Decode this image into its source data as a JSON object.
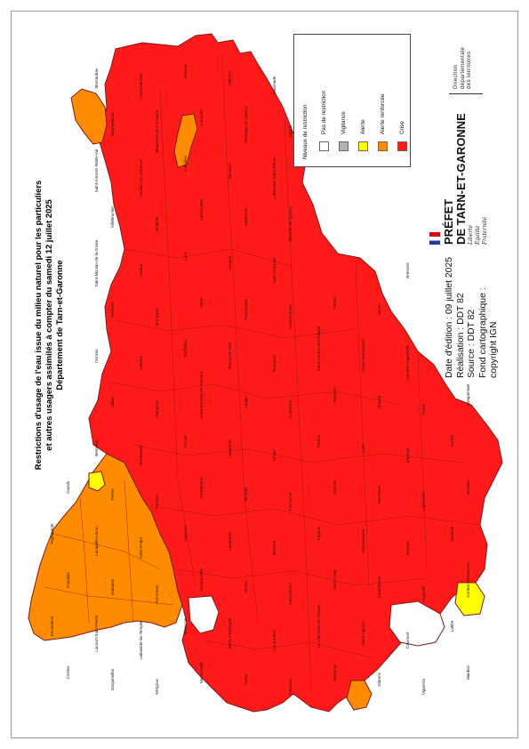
{
  "title": {
    "line1": "Restrictions d'usage de l'eau issue du milieu naturel pour les particuliers",
    "line2": "et autres usagers assimilés à compter du samedi 12 juillet 2025",
    "line3": "Département de Tarn-et-Garonne"
  },
  "legend": {
    "heading": "Niveaux de restriction",
    "items": [
      {
        "label": "Pas de restriction",
        "color": "#ffffff"
      },
      {
        "label": "Vigilance",
        "color": "#b3b3b3"
      },
      {
        "label": "Alerte",
        "color": "#ffff00"
      },
      {
        "label": "Alerte renforcée",
        "color": "#ff8c00"
      },
      {
        "label": "Crise",
        "color": "#ff1a1a"
      }
    ]
  },
  "meta": {
    "edition": "Date d'édition : 09 juillet 2025",
    "realisation": "Réalisation : DDT 82",
    "source": "Source : DDT 82",
    "fond": "Fond cartographique :",
    "copyright": "copyright IGN"
  },
  "prefet": {
    "line1": "PRÉFET",
    "line2": "DE TARN-ET-GARONNE",
    "motto1": "Liberté",
    "motto2": "Égalité",
    "motto3": "Fraternité"
  },
  "service": {
    "line1": "Direction",
    "line2": "départementale",
    "line3": "des territoires"
  },
  "colors": {
    "crise": "#ff1a1a",
    "alerte_renforcee": "#ff8c00",
    "alerte": "#ffff00",
    "pas_de_restriction": "#ffffff",
    "border": "#7a1a1a"
  },
  "map_labels": [
    "Montauban",
    "Castelsarrasin",
    "Moissac",
    "Valence",
    "Caussade",
    "Nègrepelisse",
    "Beaumont-de-Lomagne",
    "Lauzerte",
    "Montaigu-de-Quercy",
    "Caylus",
    "Saint-Antonin-Noble-Val",
    "Verdun-sur-Garonne",
    "Grisolles",
    "Montech",
    "Labastide-Saint-Pierre",
    "Villebrumier",
    "Molières",
    "Lafrançaise",
    "Septfonds",
    "Monclar-de-Quercy",
    "Saint-Nicolas-de-la-Grave",
    "Auvillar",
    "Lavit",
    "Larrazet",
    "Saint-Porquier",
    "Bressols",
    "Réalville",
    "Bruniquel",
    "Varen",
    "Puylaroque",
    "Castelmayran",
    "Finhan",
    "Dunes",
    "Donzac",
    "Valeilles",
    "Touffailles",
    "Bourg-de-Visa",
    "Roquecor",
    "Saint-Amans-de-Pellagal",
    "Cazes-Mondenard",
    "Lamothe-Capdeville",
    "Albias",
    "Piquecos",
    "Saint-Étienne-de-Tulmont",
    "Léojac",
    "Corbarieu",
    "Reyniès",
    "Orgueil",
    "Nohic",
    "Dieupentale",
    "Bessens",
    "Montbartier",
    "Finhan",
    "Lavaurette",
    "Ginals",
    "Parisot",
    "Loze",
    "Espinas",
    "Verfeil",
    "Cazals",
    "Penne",
    "Vaïssac",
    "Génébrières",
    "Mirabel",
    "Puycornet",
    "Vazerac",
    "Montalzat",
    "Lapenche",
    "Mouillac",
    "Puylagarde",
    "Lacapelle-Livron",
    "Saint-Projet",
    "Castanet",
    "Lavaurette",
    "Belvèze",
    "Tréjouls",
    "Montesquieu",
    "Boudou",
    "Malause",
    "Espalais",
    "Gasques",
    "Pommevic",
    "Goudourville",
    "Merles",
    "Saint-Michel",
    "Saint-Loup",
    "Castelferrus",
    "Angeville",
    "Cordes-Tolosannes",
    "Escatalens",
    "Lacourt-Saint-Pierre",
    "Labastide-du-Temple",
    "Meauzac",
    "Barry-d'Islemade",
    "Les Barthes",
    "La Ville-Dieu-du-Temple",
    "Saint-Aignan",
    "Caumont",
    "Lafitte",
    "Cordes",
    "Garganvillar",
    "Sérignac",
    "Mansonville",
    "Gimat",
    "Faudoas",
    "Marignac",
    "Glatens",
    "Vigueron",
    "Maubec",
    "Escazeaux",
    "Savenès",
    "Le Causé",
    "Beaupuy",
    "Bouillac",
    "Comberouger",
    "Aucamville",
    "Canals",
    "Fabas",
    "Montbeton",
    "Lacapelle-Biron",
    "Belbèse",
    "Bardigues",
    "Saint-Cirice",
    "Castéra-Bouzet",
    "Gramont",
    "Poupas",
    "Asques",
    "Cumont",
    "Maumusson",
    "Sistels",
    "Gensac",
    "Saint-Arroumex",
    "Castelmayran",
    "Montgaillard",
    "Lamothe-Cumont",
    "Puygaillard",
    "Caussade"
  ]
}
